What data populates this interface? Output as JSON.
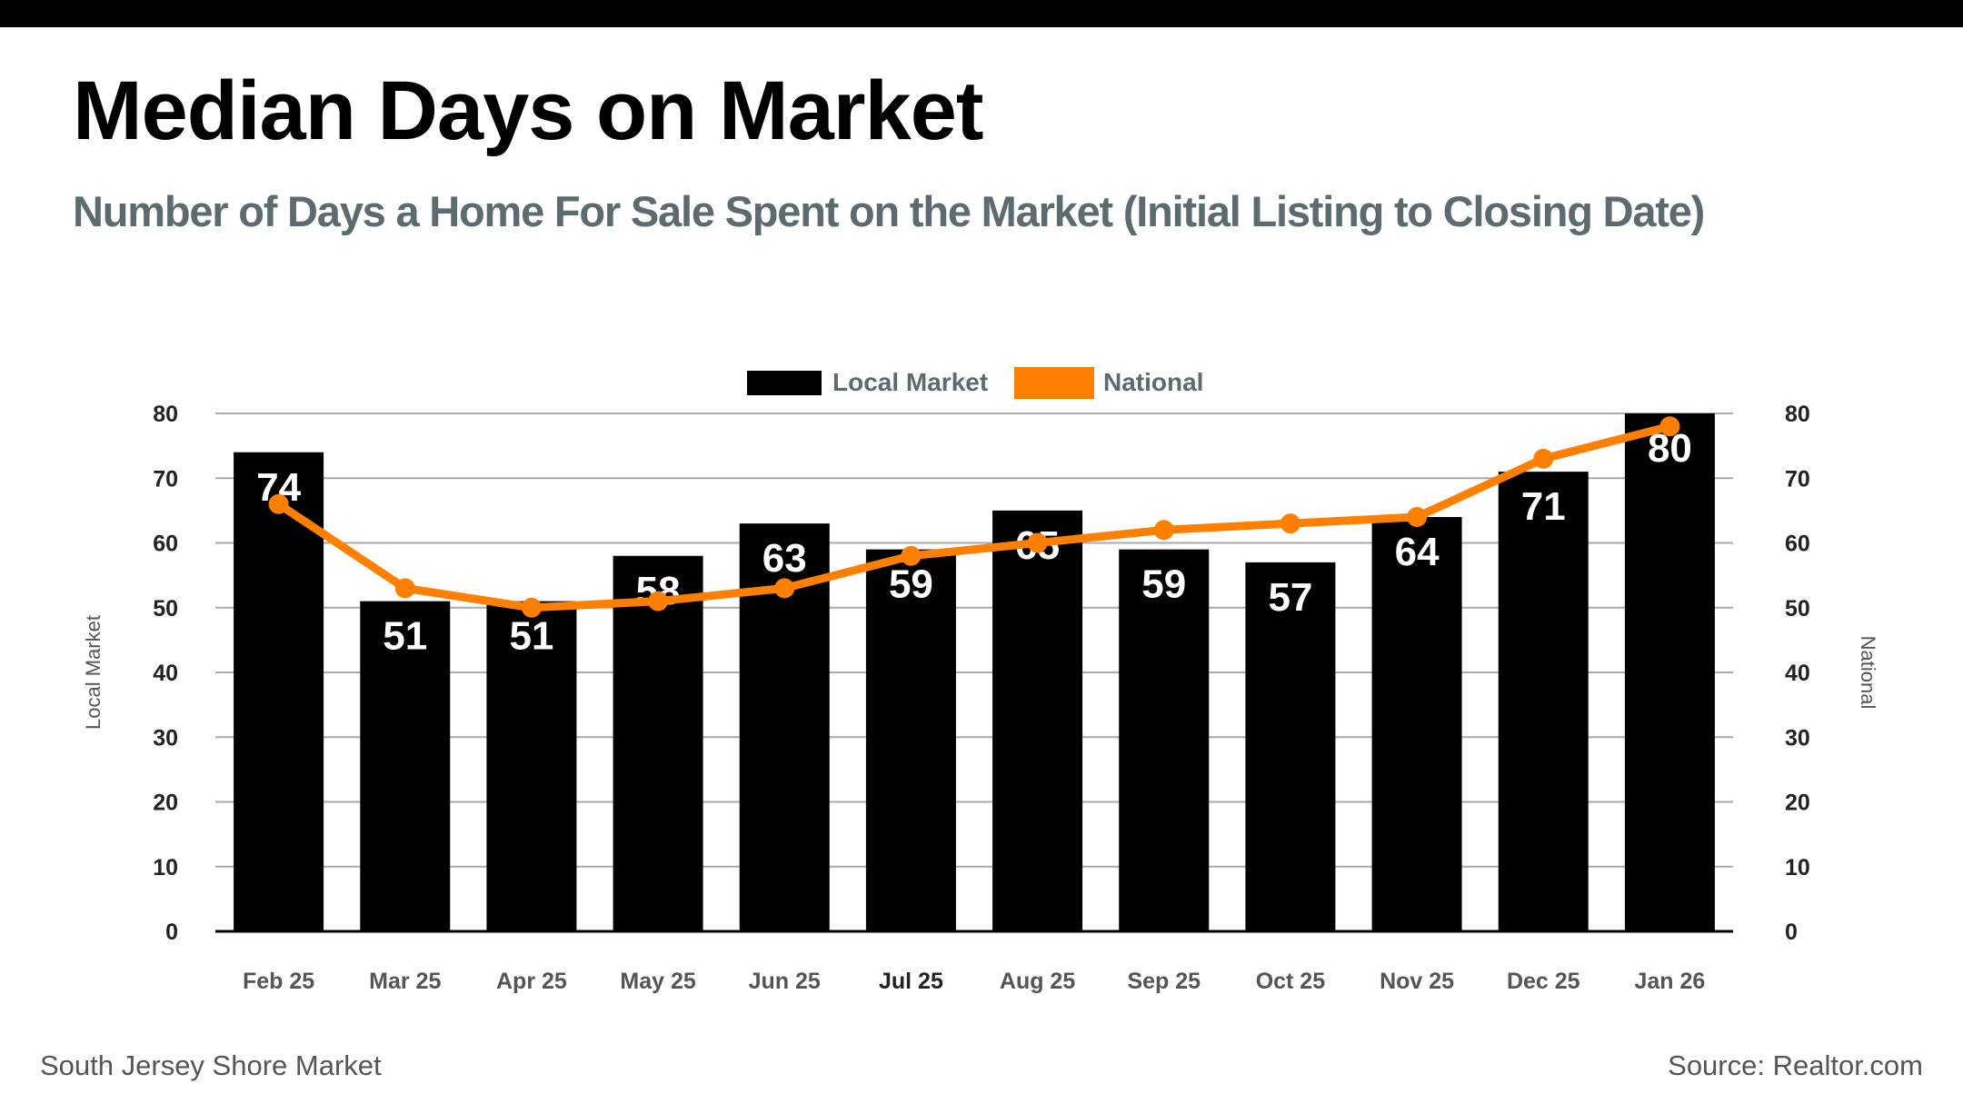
{
  "title": "Median Days on Market",
  "subtitle": "Number of Days a Home For Sale Spent on the Market (Initial Listing to Closing Date)",
  "footer": {
    "left": "South Jersey Shore Market",
    "right": "Source: Realtor.com"
  },
  "chart_data": {
    "type": "bar+line",
    "categories": [
      "Feb 25",
      "Mar 25",
      "Apr 25",
      "May 25",
      "Jun 25",
      "Jul 25",
      "Aug 25",
      "Sep 25",
      "Oct 25",
      "Nov 25",
      "Dec 25",
      "Jan 26"
    ],
    "series": [
      {
        "name": "Local Market",
        "type": "bar",
        "color": "#000000",
        "values": [
          74,
          51,
          51,
          58,
          63,
          59,
          65,
          59,
          57,
          64,
          71,
          80
        ],
        "data_labels": true
      },
      {
        "name": "National",
        "type": "line",
        "color": "#ff8000",
        "values": [
          66,
          53,
          50,
          51,
          53,
          58,
          60,
          62,
          63,
          64,
          73,
          78
        ]
      }
    ],
    "ylabel": "Local Market",
    "y2label": "National",
    "ylim": [
      0,
      80
    ],
    "y2lim": [
      0,
      80
    ],
    "yticks": [
      0,
      10,
      20,
      30,
      40,
      50,
      60,
      70,
      80
    ],
    "grid": true,
    "legend": "top-center"
  }
}
